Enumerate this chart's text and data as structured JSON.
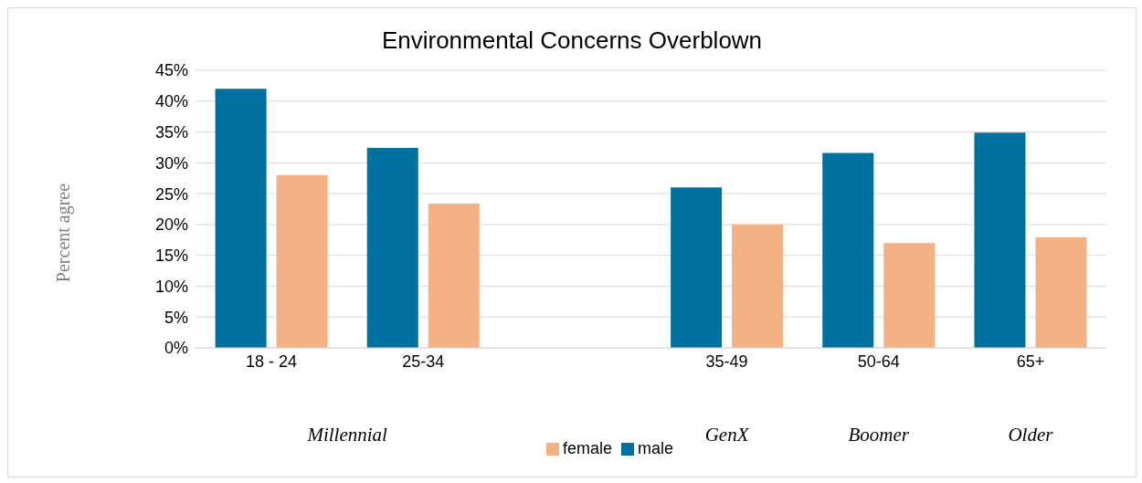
{
  "chart_data": {
    "type": "bar",
    "title": "Environmental Concerns Overblown",
    "ylabel": "Percent agree",
    "categories": [
      "18 - 24",
      "25-34",
      null,
      "35-49",
      "50-64",
      "65+"
    ],
    "series": [
      {
        "name": "male",
        "color": "#00709f",
        "values": [
          42,
          32.4,
          null,
          26,
          31.6,
          34.9
        ]
      },
      {
        "name": "female",
        "color": "#f4b183",
        "values": [
          28,
          23.4,
          null,
          20,
          17,
          17.9
        ]
      }
    ],
    "ylim": [
      0,
      45
    ],
    "yticks": [
      {
        "value": 0,
        "label": "0%"
      },
      {
        "value": 5,
        "label": "5%"
      },
      {
        "value": 10,
        "label": "10%"
      },
      {
        "value": 15,
        "label": "15%"
      },
      {
        "value": 20,
        "label": "20%"
      },
      {
        "value": 25,
        "label": "25%"
      },
      {
        "value": 30,
        "label": "30%"
      },
      {
        "value": 35,
        "label": "35%"
      },
      {
        "value": 40,
        "label": "40%"
      },
      {
        "value": 45,
        "label": "45%"
      }
    ],
    "grid": "y",
    "legend": "bottom",
    "annotations": [
      "Millennial",
      "GenX",
      "Boomer",
      "Older"
    ]
  }
}
